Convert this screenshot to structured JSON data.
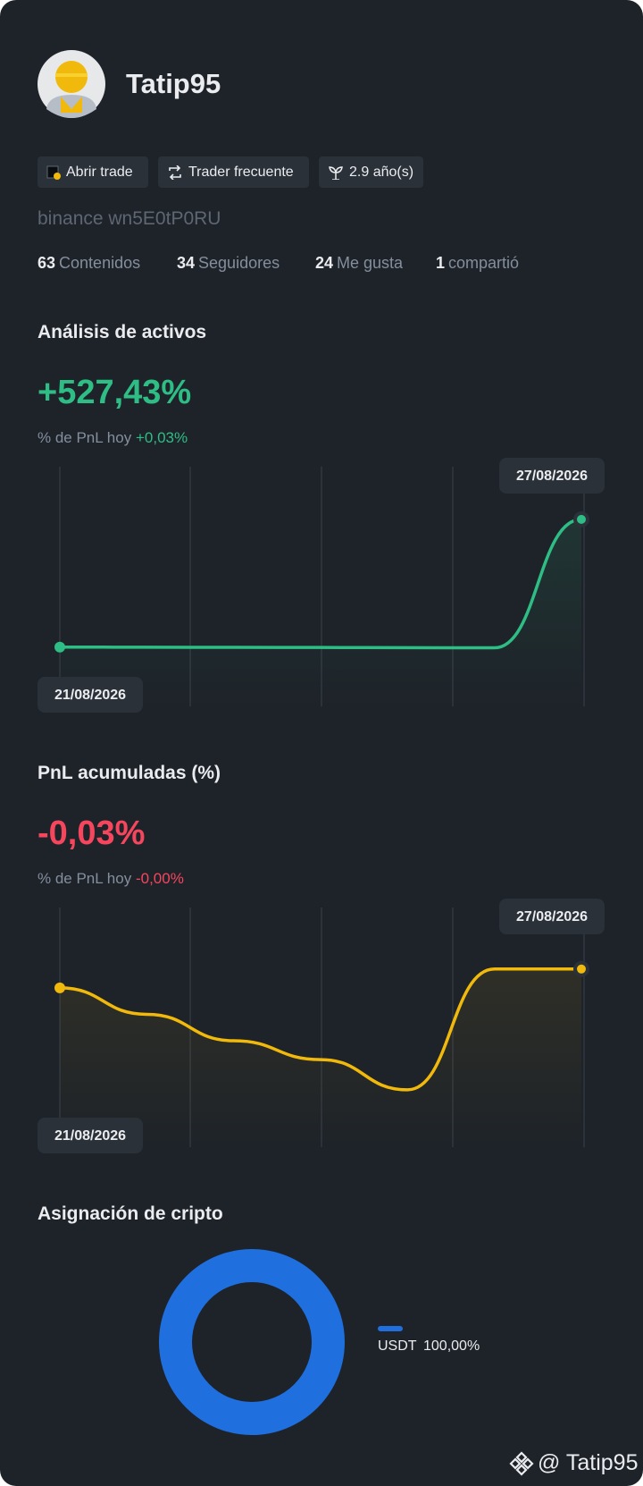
{
  "profile": {
    "username": "Tatip95",
    "account": "binance wn5E0tP0RU"
  },
  "badges": [
    "Abrir trade",
    "Trader frecuente",
    "2.9 año(s)"
  ],
  "stats": [
    {
      "value": 63,
      "label": "Contenidos"
    },
    {
      "value": 34,
      "label": "Seguidores"
    },
    {
      "value": 24,
      "label": "Me gusta"
    },
    {
      "value": 1,
      "label": "compartió"
    }
  ],
  "asset_analysis": {
    "title": "Análisis de activos",
    "total": "+527,43%",
    "today_label": "% de PnL hoy",
    "today_value": "+0,03%",
    "chart": {
      "type": "line",
      "categories": [
        "21/08/2026",
        null,
        null,
        null,
        null,
        null,
        "27/08/2026"
      ],
      "values": [
        3,
        2.5,
        2,
        1.5,
        0.5,
        0,
        527.43
      ],
      "ylim": [
        -20,
        560
      ],
      "color": "#2ebd85"
    }
  },
  "cumulative_pnl": {
    "title": "PnL acumuladas (%)",
    "total": "-0,03%",
    "today_label": "% de PnL hoy",
    "today_value": "-0,00%",
    "chart": {
      "type": "line",
      "categories": [
        "21/08/2026",
        null,
        null,
        null,
        null,
        null,
        "27/08/2026"
      ],
      "values": [
        -0.08,
        -0.15,
        -0.22,
        -0.27,
        -0.35,
        -0.03,
        -0.03
      ],
      "ylim": [
        -0.4,
        0.05
      ],
      "color": "#f0b90b"
    }
  },
  "allocation": {
    "title": "Asignación de cripto",
    "chart": {
      "type": "pie",
      "categories": [
        "USDT"
      ],
      "values": [
        100
      ],
      "value_labels": [
        "100,00%"
      ],
      "colors": [
        "#1f6fde"
      ]
    }
  },
  "footer": {
    "watermark": "@ Tatip95"
  }
}
